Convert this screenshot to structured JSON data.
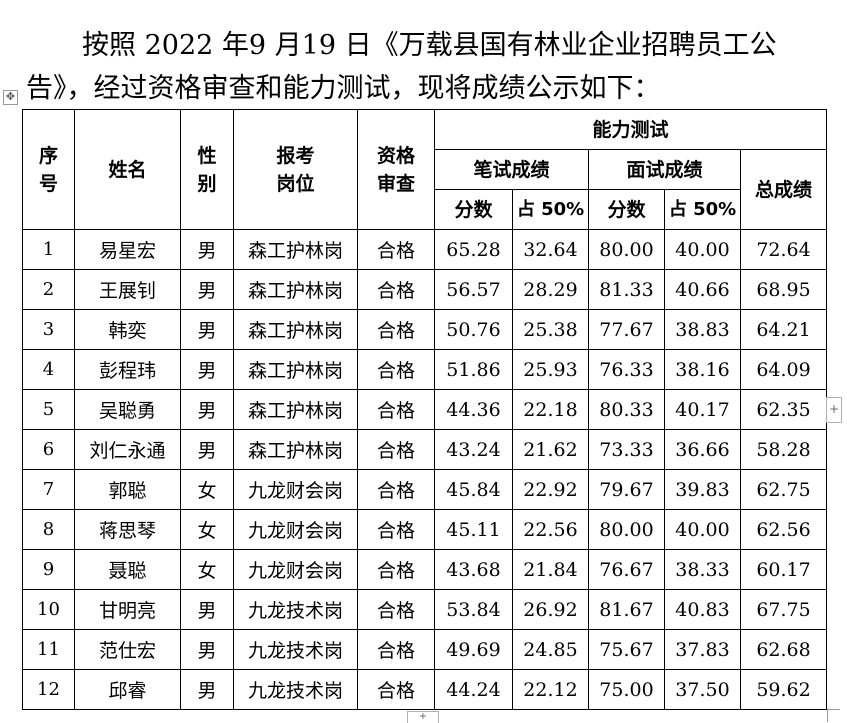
{
  "intro": {
    "text": "按照 2022 年9 月19 日《万载县国有林业企业招聘员工公告》，经过资格审查和能力测试，现将成绩公示如下："
  },
  "table": {
    "headers": {
      "seq": "序号",
      "name": "姓名",
      "gender": "性别",
      "position": "报考岗位",
      "qualification": "资格审查",
      "ability_test": "能力测试",
      "written": "笔试成绩",
      "interview": "面试成绩",
      "total": "总成绩",
      "score": "分数",
      "weight": "占 50%"
    },
    "rows": [
      {
        "seq": "1",
        "name": "易星宏",
        "gender": "男",
        "position": "森工护林岗",
        "qualification": "合格",
        "written_score": "65.28",
        "written_weighted": "32.64",
        "interview_score": "80.00",
        "interview_weighted": "40.00",
        "total": "72.64"
      },
      {
        "seq": "2",
        "name": "王展钊",
        "gender": "男",
        "position": "森工护林岗",
        "qualification": "合格",
        "written_score": "56.57",
        "written_weighted": "28.29",
        "interview_score": "81.33",
        "interview_weighted": "40.66",
        "total": "68.95"
      },
      {
        "seq": "3",
        "name": "韩奕",
        "gender": "男",
        "position": "森工护林岗",
        "qualification": "合格",
        "written_score": "50.76",
        "written_weighted": "25.38",
        "interview_score": "77.67",
        "interview_weighted": "38.83",
        "total": "64.21"
      },
      {
        "seq": "4",
        "name": "彭程玮",
        "gender": "男",
        "position": "森工护林岗",
        "qualification": "合格",
        "written_score": "51.86",
        "written_weighted": "25.93",
        "interview_score": "76.33",
        "interview_weighted": "38.16",
        "total": "64.09"
      },
      {
        "seq": "5",
        "name": "吴聪勇",
        "gender": "男",
        "position": "森工护林岗",
        "qualification": "合格",
        "written_score": "44.36",
        "written_weighted": "22.18",
        "interview_score": "80.33",
        "interview_weighted": "40.17",
        "total": "62.35"
      },
      {
        "seq": "6",
        "name": "刘仁永通",
        "gender": "男",
        "position": "森工护林岗",
        "qualification": "合格",
        "written_score": "43.24",
        "written_weighted": "21.62",
        "interview_score": "73.33",
        "interview_weighted": "36.66",
        "total": "58.28"
      },
      {
        "seq": "7",
        "name": "郭聪",
        "gender": "女",
        "position": "九龙财会岗",
        "qualification": "合格",
        "written_score": "45.84",
        "written_weighted": "22.92",
        "interview_score": "79.67",
        "interview_weighted": "39.83",
        "total": "62.75"
      },
      {
        "seq": "8",
        "name": "蒋思琴",
        "gender": "女",
        "position": "九龙财会岗",
        "qualification": "合格",
        "written_score": "45.11",
        "written_weighted": "22.56",
        "interview_score": "80.00",
        "interview_weighted": "40.00",
        "total": "62.56"
      },
      {
        "seq": "9",
        "name": "聂聪",
        "gender": "女",
        "position": "九龙财会岗",
        "qualification": "合格",
        "written_score": "43.68",
        "written_weighted": "21.84",
        "interview_score": "76.67",
        "interview_weighted": "38.33",
        "total": "60.17"
      },
      {
        "seq": "10",
        "name": "甘明亮",
        "gender": "男",
        "position": "九龙技术岗",
        "qualification": "合格",
        "written_score": "53.84",
        "written_weighted": "26.92",
        "interview_score": "81.67",
        "interview_weighted": "40.83",
        "total": "67.75"
      },
      {
        "seq": "11",
        "name": "范仕宏",
        "gender": "男",
        "position": "九龙技术岗",
        "qualification": "合格",
        "written_score": "49.69",
        "written_weighted": "24.85",
        "interview_score": "75.67",
        "interview_weighted": "37.83",
        "total": "62.68"
      },
      {
        "seq": "12",
        "name": "邱睿",
        "gender": "男",
        "position": "九龙技术岗",
        "qualification": "合格",
        "written_score": "44.24",
        "written_weighted": "22.12",
        "interview_score": "75.00",
        "interview_weighted": "37.50",
        "total": "59.62"
      }
    ]
  },
  "handles": {
    "move_icon": "move-cross-icon",
    "add_column_icon": "plus-icon",
    "add_row_icon": "plus-icon",
    "resize_icon": "resize-corner-icon"
  }
}
